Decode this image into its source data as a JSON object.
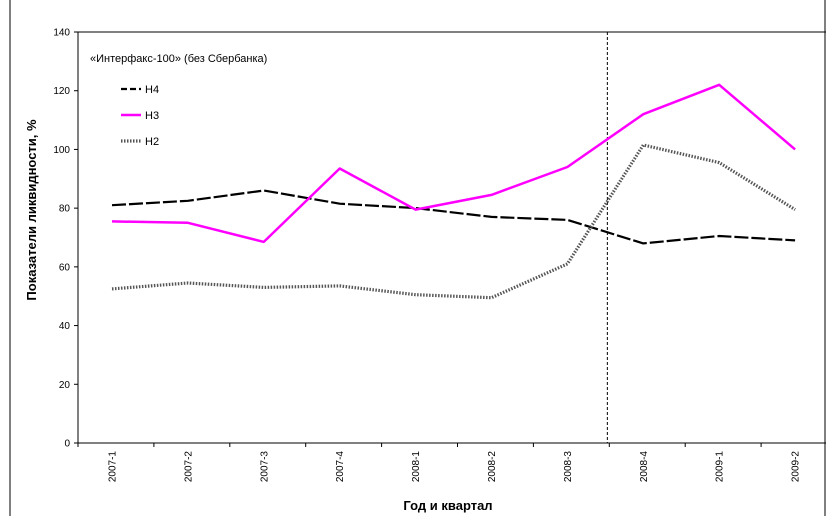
{
  "chart_data": {
    "type": "line",
    "title": "«Интерфакс-100» (без Сбербанка)",
    "xlabel": "Год и квартал",
    "ylabel": "Показатели ликвидности, %",
    "categories": [
      "2007-1",
      "2007-2",
      "2007-3",
      "2007-4",
      "2008-1",
      "2008-2",
      "2008-3",
      "2008-4",
      "2009-1",
      "2009-2"
    ],
    "ylim": [
      0,
      140
    ],
    "yticks": [
      0,
      20,
      40,
      60,
      80,
      100,
      120,
      140
    ],
    "grid": false,
    "legend_position": "top-left",
    "vertical_marker": "between 2008-3 and 2008-4",
    "series": [
      {
        "name": "Н4",
        "color": "#000000",
        "style": "long-dash",
        "values": [
          81,
          82.5,
          86,
          81.5,
          80,
          77,
          76,
          68,
          70.5,
          69
        ]
      },
      {
        "name": "Н3",
        "color": "#ff00ff",
        "style": "solid",
        "values": [
          75.5,
          75,
          68.5,
          93.5,
          79.5,
          84.5,
          94,
          112,
          122,
          100
        ]
      },
      {
        "name": "Н2",
        "color": "#555555",
        "style": "dotted",
        "values": [
          52.5,
          54.5,
          53,
          53.5,
          50.5,
          49.5,
          61,
          101.5,
          95.5,
          79.5
        ]
      }
    ]
  }
}
